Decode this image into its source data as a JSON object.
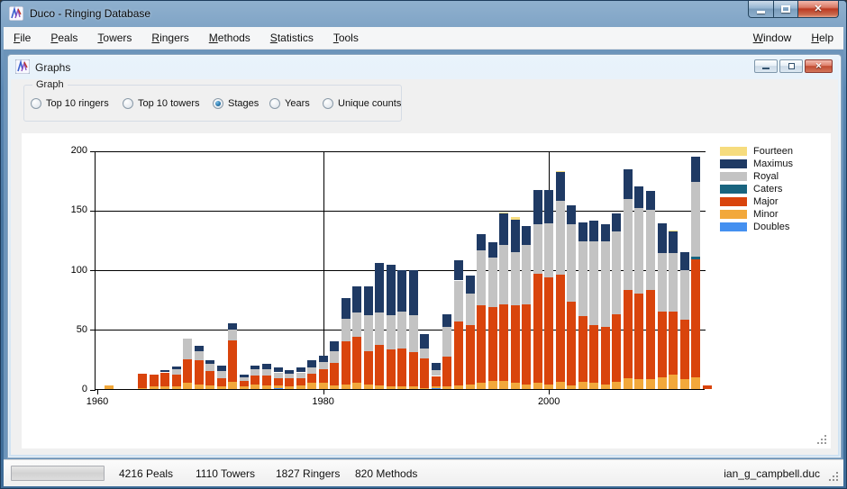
{
  "window": {
    "title": "Duco - Ringing Database"
  },
  "menu": {
    "left": [
      {
        "label": "File",
        "u": 0
      },
      {
        "label": "Peals",
        "u": 0
      },
      {
        "label": "Towers",
        "u": 0
      },
      {
        "label": "Ringers",
        "u": 0
      },
      {
        "label": "Methods",
        "u": 0
      },
      {
        "label": "Statistics",
        "u": 0
      },
      {
        "label": "Tools",
        "u": 0
      }
    ],
    "right": [
      {
        "label": "Window",
        "u": 0
      },
      {
        "label": "Help",
        "u": 0
      }
    ]
  },
  "graphs_window": {
    "title": "Graphs",
    "graph_box": {
      "label": "Graph",
      "options": [
        {
          "label": "Top 10 ringers",
          "selected": false
        },
        {
          "label": "Top 10 towers",
          "selected": false
        },
        {
          "label": "Stages",
          "selected": true
        },
        {
          "label": "Years",
          "selected": false
        },
        {
          "label": "Unique counts",
          "selected": false
        }
      ]
    }
  },
  "status_bar": {
    "panels": [
      "4216 Peals",
      "1110 Towers",
      "1827 Ringers",
      "820 Methods"
    ],
    "file_name": "ian_g_campbell.duc"
  },
  "chart_data": {
    "type": "bar",
    "stacked": true,
    "title": "",
    "xlabel": "",
    "ylabel": "",
    "ylim": [
      0,
      200
    ],
    "yticks": [
      0,
      50,
      100,
      150,
      200
    ],
    "xticks": [
      1960,
      1980,
      2000
    ],
    "x_gridlines": [
      1980,
      2000
    ],
    "grid": true,
    "legend_position": "right",
    "years": [
      1961,
      1962,
      1963,
      1964,
      1965,
      1966,
      1967,
      1968,
      1969,
      1970,
      1971,
      1972,
      1973,
      1974,
      1975,
      1976,
      1977,
      1978,
      1979,
      1980,
      1981,
      1982,
      1983,
      1984,
      1985,
      1986,
      1987,
      1988,
      1989,
      1990,
      1991,
      1992,
      1993,
      1994,
      1995,
      1996,
      1997,
      1998,
      1999,
      2000,
      2001,
      2002,
      2003,
      2004,
      2005,
      2006,
      2007,
      2008,
      2009,
      2010,
      2011,
      2012,
      2013,
      2014
    ],
    "stack_order_bottom_to_top": [
      "Doubles",
      "Minor",
      "Major",
      "Caters",
      "Royal",
      "Maximus",
      "Fourteen"
    ],
    "series": [
      {
        "name": "Fourteen",
        "color": "#F6DC7E",
        "values": [
          0,
          0,
          0,
          0,
          0,
          0,
          0,
          0,
          0,
          0,
          0,
          0,
          0,
          0,
          0,
          0,
          0,
          0,
          0,
          0,
          0,
          0,
          0,
          0,
          0,
          0,
          0,
          0,
          0,
          0,
          0,
          0,
          0,
          0,
          0,
          1,
          2,
          0,
          0,
          0,
          1,
          0,
          0,
          0,
          0,
          0,
          0,
          0,
          0,
          0,
          1,
          0,
          0,
          0
        ]
      },
      {
        "name": "Maximus",
        "color": "#1F3A64",
        "values": [
          0,
          0,
          0,
          0,
          0,
          2,
          2,
          0,
          4,
          3,
          5,
          5,
          2,
          3,
          4,
          4,
          3,
          4,
          6,
          5,
          8,
          17,
          22,
          24,
          42,
          42,
          35,
          38,
          12,
          6,
          11,
          17,
          15,
          14,
          13,
          26,
          27,
          16,
          29,
          28,
          24,
          16,
          16,
          17,
          14,
          15,
          25,
          18,
          16,
          25,
          18,
          15,
          21,
          0
        ]
      },
      {
        "name": "Royal",
        "color": "#C3C3C3",
        "values": [
          0,
          0,
          0,
          0,
          0,
          0,
          5,
          17,
          8,
          6,
          6,
          9,
          3,
          6,
          6,
          5,
          4,
          5,
          5,
          6,
          10,
          19,
          20,
          30,
          27,
          29,
          31,
          31,
          8,
          5,
          25,
          34,
          26,
          46,
          41,
          50,
          45,
          50,
          41,
          45,
          62,
          65,
          63,
          70,
          72,
          69,
          76,
          72,
          67,
          49,
          49,
          42,
          63,
          0
        ]
      },
      {
        "name": "Caters",
        "color": "#18647F",
        "values": [
          0,
          0,
          0,
          0,
          0,
          0,
          0,
          0,
          0,
          0,
          0,
          0,
          0,
          0,
          0,
          0,
          0,
          0,
          0,
          0,
          0,
          0,
          0,
          0,
          0,
          0,
          0,
          0,
          0,
          0,
          0,
          0,
          0,
          0,
          0,
          0,
          0,
          0,
          0,
          0,
          0,
          0,
          0,
          0,
          0,
          0,
          0,
          0,
          0,
          0,
          0,
          0,
          2,
          0
        ]
      },
      {
        "name": "Major",
        "color": "#D9440C",
        "values": [
          0,
          0,
          0,
          12,
          10,
          12,
          10,
          20,
          20,
          12,
          7,
          35,
          5,
          7,
          8,
          6,
          7,
          6,
          8,
          12,
          19,
          36,
          39,
          28,
          34,
          31,
          32,
          29,
          25,
          9,
          25,
          54,
          50,
          65,
          62,
          64,
          65,
          67,
          92,
          90,
          90,
          70,
          55,
          49,
          48,
          57,
          74,
          72,
          75,
          55,
          53,
          50,
          99,
          3
        ]
      },
      {
        "name": "Minor",
        "color": "#F2A83B",
        "values": [
          3,
          0,
          0,
          1,
          2,
          2,
          2,
          5,
          4,
          3,
          2,
          6,
          2,
          4,
          3,
          2,
          2,
          3,
          5,
          5,
          3,
          4,
          5,
          4,
          3,
          2,
          2,
          2,
          1,
          1,
          2,
          3,
          4,
          5,
          7,
          7,
          5,
          4,
          5,
          4,
          6,
          3,
          6,
          5,
          4,
          6,
          9,
          8,
          8,
          10,
          12,
          8,
          10,
          0
        ]
      },
      {
        "name": "Doubles",
        "color": "#4490F0",
        "values": [
          0,
          0,
          0,
          0,
          0,
          0,
          0,
          0,
          0,
          0,
          0,
          0,
          0,
          0,
          0,
          1,
          0,
          0,
          0,
          0,
          0,
          0,
          0,
          0,
          0,
          0,
          0,
          0,
          0,
          1,
          0,
          0,
          0,
          0,
          0,
          0,
          0,
          0,
          0,
          0,
          0,
          0,
          0,
          0,
          0,
          0,
          0,
          0,
          0,
          0,
          0,
          0,
          0,
          0
        ]
      }
    ]
  }
}
